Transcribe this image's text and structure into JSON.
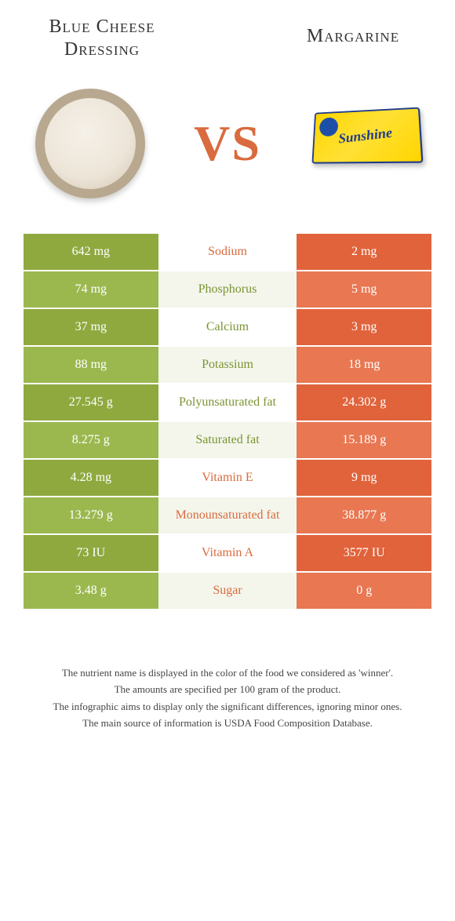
{
  "titles": {
    "left_line1": "Blue Cheese",
    "left_line2": "Dressing",
    "right": "Margarine",
    "vs": "VS"
  },
  "images": {
    "margarine_label": "Sunshine"
  },
  "colors": {
    "green_dark": "#8fa93f",
    "green_light": "#9bb84f",
    "orange_dark": "#e1633b",
    "orange_light": "#e87752",
    "mid_alt": "#f4f6ec",
    "label_green": "#7a9432",
    "label_orange": "#d96b3e"
  },
  "rows": [
    {
      "left": "642 mg",
      "label": "Sodium",
      "right": "2 mg",
      "winner": "orange"
    },
    {
      "left": "74 mg",
      "label": "Phosphorus",
      "right": "5 mg",
      "winner": "green"
    },
    {
      "left": "37 mg",
      "label": "Calcium",
      "right": "3 mg",
      "winner": "green"
    },
    {
      "left": "88 mg",
      "label": "Potassium",
      "right": "18 mg",
      "winner": "green"
    },
    {
      "left": "27.545 g",
      "label": "Polyunsaturated fat",
      "right": "24.302 g",
      "winner": "green"
    },
    {
      "left": "8.275 g",
      "label": "Saturated fat",
      "right": "15.189 g",
      "winner": "green"
    },
    {
      "left": "4.28 mg",
      "label": "Vitamin E",
      "right": "9 mg",
      "winner": "orange"
    },
    {
      "left": "13.279 g",
      "label": "Monounsaturated fat",
      "right": "38.877 g",
      "winner": "orange"
    },
    {
      "left": "73 IU",
      "label": "Vitamin A",
      "right": "3577 IU",
      "winner": "orange"
    },
    {
      "left": "3.48 g",
      "label": "Sugar",
      "right": "0 g",
      "winner": "orange"
    }
  ],
  "footnotes": [
    "The nutrient name is displayed in the color of the food we considered as 'winner'.",
    "The amounts are specified per 100 gram of the product.",
    "The infographic aims to display only the significant differences, ignoring minor ones.",
    "The main source of information is USDA Food Composition Database."
  ]
}
